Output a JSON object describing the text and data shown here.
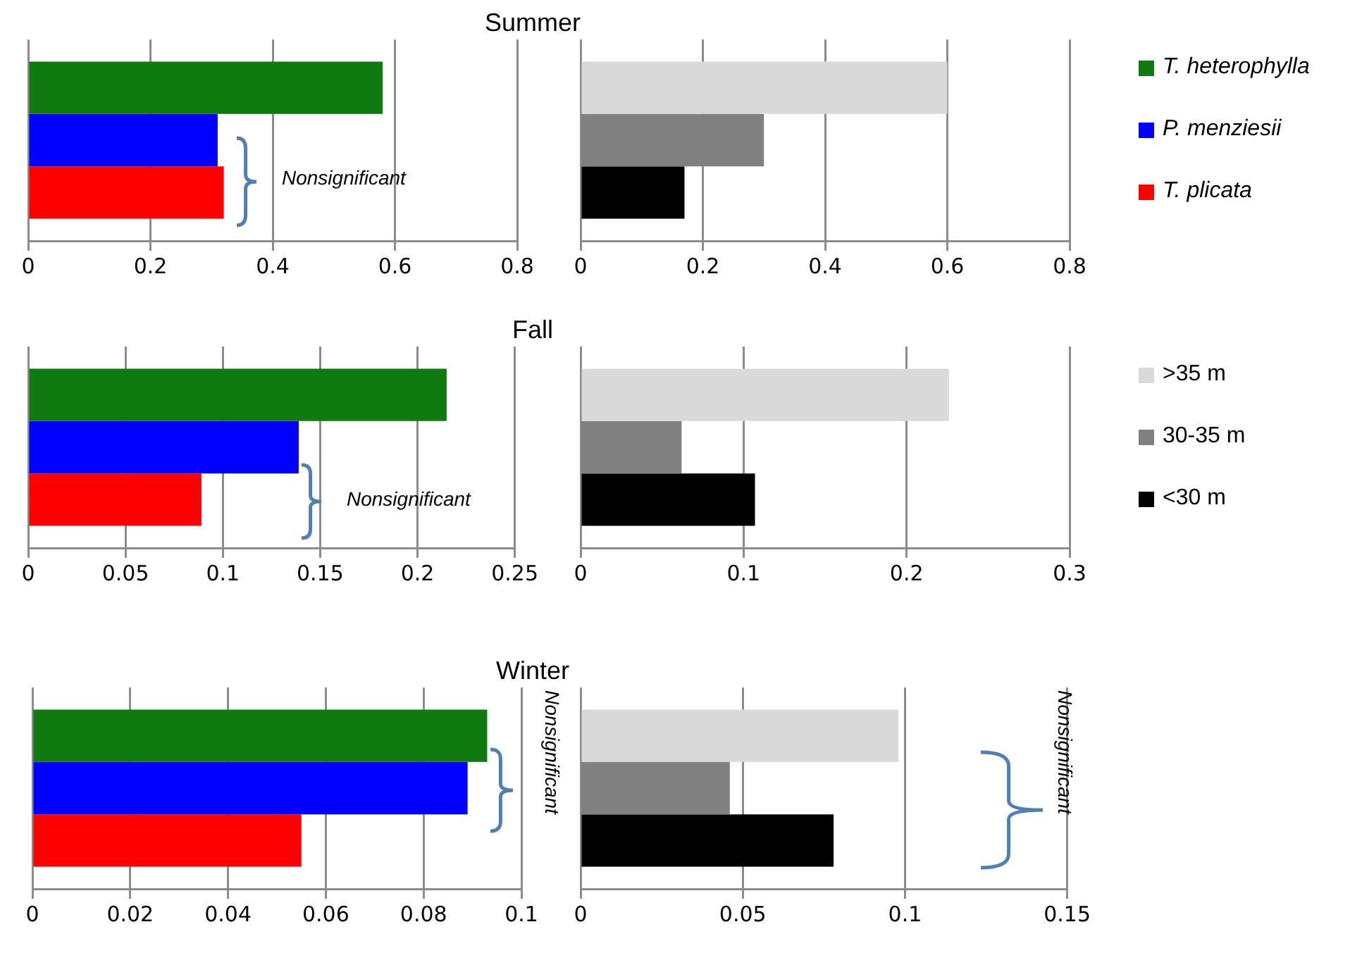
{
  "chart_data": [
    {
      "type": "bar",
      "orientation": "horizontal",
      "title": "Summer",
      "categories": [
        null
      ],
      "xlim": [
        0,
        0.8
      ],
      "xticks": [
        0,
        0.2,
        0.4,
        0.6,
        0.8
      ],
      "grid": "x",
      "legend": "right",
      "annotations": [
        "Nonsignificant"
      ],
      "series": [
        {
          "name": "T. heterophylla",
          "color": "#0f7a10",
          "values": [
            0.58
          ]
        },
        {
          "name": "P. menziesii",
          "color": "#0000ff",
          "values": [
            0.31
          ]
        },
        {
          "name": "T. plicata",
          "color": "#ff0000",
          "values": [
            0.32
          ]
        }
      ]
    },
    {
      "type": "bar",
      "orientation": "horizontal",
      "categories": [
        null
      ],
      "xlim": [
        0,
        0.8
      ],
      "xticks": [
        0,
        0.2,
        0.4,
        0.6,
        0.8
      ],
      "grid": "x",
      "series": [
        {
          "color": "#d9d9d9",
          "values": [
            0.6
          ]
        },
        {
          "color": "#808080",
          "values": [
            0.3
          ]
        },
        {
          "color": "#000000",
          "values": [
            0.17
          ]
        }
      ]
    },
    {
      "type": "bar",
      "orientation": "horizontal",
      "title": "Fall",
      "categories": [
        null
      ],
      "xlim": [
        0,
        0.25
      ],
      "xticks": [
        0,
        0.05,
        0.1,
        0.15,
        0.2,
        0.25
      ],
      "grid": "x",
      "annotations": [
        "Nonsignificant"
      ],
      "series": [
        {
          "color": "#0f7a10",
          "values": [
            0.215
          ]
        },
        {
          "color": "#0000ff",
          "values": [
            0.139
          ]
        },
        {
          "color": "#ff0000",
          "values": [
            0.089
          ]
        }
      ]
    },
    {
      "type": "bar",
      "orientation": "horizontal",
      "categories": [
        null
      ],
      "xlim": [
        0,
        0.3
      ],
      "xticks": [
        0,
        0.1,
        0.2,
        0.3
      ],
      "grid": "x",
      "legend": "right",
      "series": [
        {
          "name": ">35 m",
          "color": "#d9d9d9",
          "values": [
            0.226
          ]
        },
        {
          "name": "30-35 m",
          "color": "#808080",
          "values": [
            0.062
          ]
        },
        {
          "name": "<30 m",
          "color": "#000000",
          "values": [
            0.107
          ]
        }
      ]
    },
    {
      "type": "bar",
      "orientation": "horizontal",
      "title": "Winter",
      "categories": [
        null
      ],
      "xlim": [
        0,
        0.1
      ],
      "xticks": [
        0,
        0.02,
        0.04,
        0.06,
        0.08,
        0.1
      ],
      "grid": "x",
      "annotations": [
        "Nonsignificant"
      ],
      "series": [
        {
          "color": "#0f7a10",
          "values": [
            0.093
          ]
        },
        {
          "color": "#0000ff",
          "values": [
            0.089
          ]
        },
        {
          "color": "#ff0000",
          "values": [
            0.055
          ]
        }
      ]
    },
    {
      "type": "bar",
      "orientation": "horizontal",
      "categories": [
        null
      ],
      "xlim": [
        0,
        0.15
      ],
      "xticks": [
        0,
        0.05,
        0.1,
        0.15
      ],
      "grid": "x",
      "annotations": [
        "Nonsignificant"
      ],
      "series": [
        {
          "color": "#d9d9d9",
          "values": [
            0.098
          ]
        },
        {
          "color": "#808080",
          "values": [
            0.046
          ]
        },
        {
          "color": "#000000",
          "values": [
            0.078
          ]
        }
      ]
    }
  ]
}
